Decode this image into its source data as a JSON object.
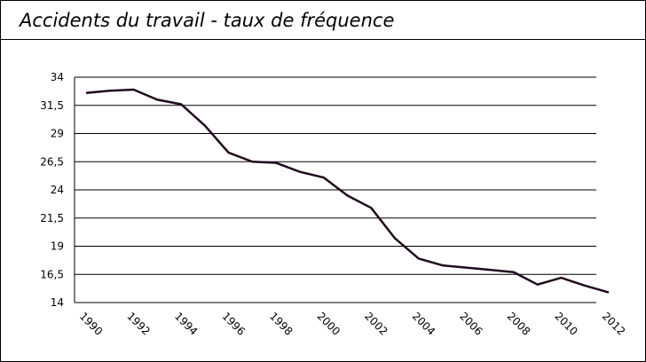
{
  "chart_data": {
    "type": "line",
    "title": "Accidents du travail - taux de fréquence",
    "categories": [
      "1990",
      null,
      "1992",
      null,
      "1994",
      null,
      "1996",
      null,
      "1998",
      null,
      "2000",
      null,
      "2002",
      null,
      "2004",
      null,
      "2006",
      null,
      "2008",
      null,
      "2010",
      null,
      "2012"
    ],
    "series": [
      {
        "color": "#1f0a1e",
        "values": [
          32.6,
          32.8,
          32.9,
          32.0,
          31.6,
          29.7,
          27.3,
          26.5,
          26.4,
          25.6,
          25.1,
          23.5,
          22.4,
          19.7,
          17.9,
          17.3,
          17.1,
          16.9,
          16.7,
          15.6,
          16.2,
          15.5,
          14.9
        ]
      }
    ],
    "ylim": [
      14,
      34
    ],
    "yticks": [
      14,
      {
        "value": 16.5,
        "label": "16,5"
      },
      19,
      {
        "value": 21.5,
        "label": "21,5"
      },
      24,
      {
        "value": 26.5,
        "label": "26,5"
      },
      29,
      {
        "value": 31.5,
        "label": "31,5"
      },
      34
    ],
    "grid": true
  }
}
